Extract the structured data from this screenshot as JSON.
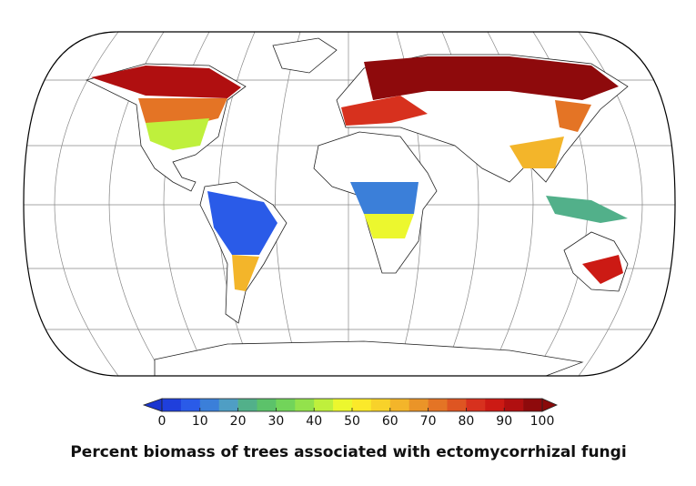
{
  "colorbar": {
    "range": [
      0,
      100
    ],
    "ticks": [
      0,
      10,
      20,
      30,
      40,
      50,
      60,
      70,
      80,
      90,
      100
    ],
    "colors": [
      "#1f3fdc",
      "#2a5be8",
      "#3b7fd9",
      "#4f9ec4",
      "#52b08a",
      "#5cc26a",
      "#72d45a",
      "#93e24c",
      "#bff03c",
      "#ecf72e",
      "#fbe92a",
      "#f8d22a",
      "#f3b52a",
      "#ea9428",
      "#e47425",
      "#de5522",
      "#d7311e",
      "#cc1a14",
      "#b00f10",
      "#8e0a0c"
    ],
    "under_color": "#1a35d0",
    "over_color": "#8a0a0a"
  },
  "caption": "Percent biomass of trees associated with ectomycorrhizal fungi"
}
